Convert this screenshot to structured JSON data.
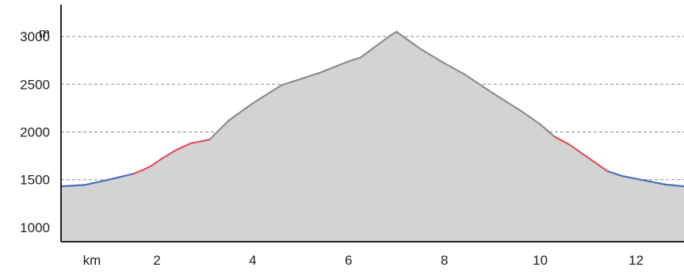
{
  "chart_data": {
    "type": "area",
    "title": "",
    "xlabel": "km",
    "ylabel": "m",
    "xlim": [
      0,
      13
    ],
    "ylim": [
      850,
      3150
    ],
    "x_ticks": [
      2,
      4,
      6,
      8,
      10,
      12
    ],
    "y_ticks": [
      1000,
      1500,
      2000,
      2500,
      3000
    ],
    "grid": true,
    "fill_color": "#d3d3d3",
    "colors": {
      "blue": "#4a70b8",
      "red": "#e0505f",
      "gray": "#8c8c8c"
    },
    "series": [
      {
        "x": [
          0,
          0.5,
          1.0,
          1.5,
          1.7,
          1.9,
          2.1,
          2.4,
          2.7,
          3.1,
          3.5,
          4.0,
          4.6,
          5.4,
          6.0,
          6.25,
          6.9,
          7.0,
          7.5,
          8.0,
          8.4,
          9.0,
          9.6,
          10.0,
          10.3,
          10.6,
          11.0,
          11.4,
          11.7,
          12.2,
          12.6,
          13.0
        ],
        "y": [
          1430,
          1445,
          1500,
          1560,
          1600,
          1650,
          1720,
          1810,
          1880,
          1920,
          2120,
          2300,
          2490,
          2620,
          2740,
          2780,
          3020,
          3050,
          2870,
          2720,
          2610,
          2410,
          2220,
          2080,
          1950,
          1870,
          1730,
          1590,
          1540,
          1490,
          1450,
          1430
        ],
        "color_by_segment": [
          "blue",
          "blue",
          "blue",
          "red",
          "red",
          "red",
          "red",
          "red",
          "red",
          "gray",
          "gray",
          "gray",
          "gray",
          "gray",
          "gray",
          "gray",
          "gray",
          "gray",
          "gray",
          "gray",
          "gray",
          "gray",
          "gray",
          "gray",
          "red",
          "red",
          "red",
          "blue",
          "blue",
          "blue",
          "blue"
        ]
      }
    ]
  }
}
